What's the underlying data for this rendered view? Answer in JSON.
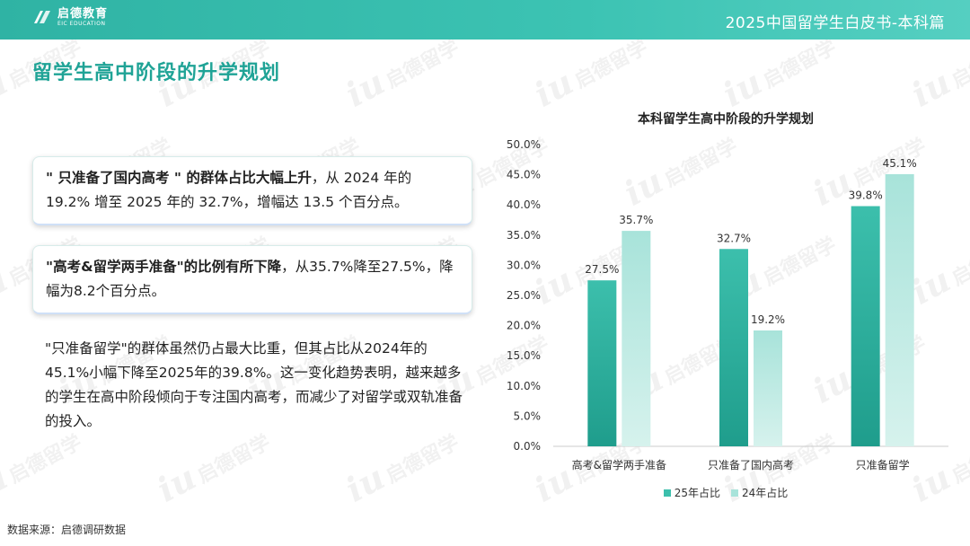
{
  "header": {
    "logo_cn": "启德教育",
    "logo_en": "EIC EDUCATION",
    "title": "2025中国留学生白皮书-本科篇"
  },
  "page_title": "留学生高中阶段的升学规划",
  "boxes": [
    {
      "highlight": "\" 只准备了国内高考 \" 的群体占比大幅上升",
      "rest": "，从 2024 年的 19.2% 增至 2025 年的 32.7%，增幅达 13.5 个百分点。"
    },
    {
      "highlight": "\"高考&留学两手准备\"的比例有所下降",
      "rest": "，从35.7%降至27.5%，降幅为8.2个百分点。"
    }
  ],
  "paragraph": "\"只准备留学\"的群体虽然仍占最大比重，但其占比从2024年的45.1%小幅下降至2025年的39.8%。这一变化趋势表明，越来越多的学生在高中阶段倾向于专注国内高考，而减少了对留学或双轨准备的投入。",
  "source": "数据来源：启德调研数据",
  "watermark": {
    "mark": "iu",
    "text": "启德留学",
    "sub": "EIC EDUCATION"
  },
  "colors": {
    "accent": "#1fa396",
    "series_2025": "#3cbfac",
    "series_2024": "#a8e3da"
  },
  "chart_data": {
    "type": "bar",
    "title": "本科留学生高中阶段的升学规划",
    "categories": [
      "高考&留学两手准备",
      "只准备了国内高考",
      "只准备留学"
    ],
    "series": [
      {
        "name": "25年占比",
        "values": [
          27.5,
          32.7,
          39.8
        ],
        "color": "#3cbfac"
      },
      {
        "name": "24年占比",
        "values": [
          35.7,
          19.2,
          45.1
        ],
        "color": "#a8e3da"
      }
    ],
    "ylim": [
      0,
      50
    ],
    "yticks": [
      "0.0%",
      "5.0%",
      "10.0%",
      "15.0%",
      "20.0%",
      "25.0%",
      "30.0%",
      "35.0%",
      "40.0%",
      "45.0%",
      "50.0%"
    ],
    "value_suffix": "%",
    "legend_position": "bottom",
    "grid": false
  }
}
